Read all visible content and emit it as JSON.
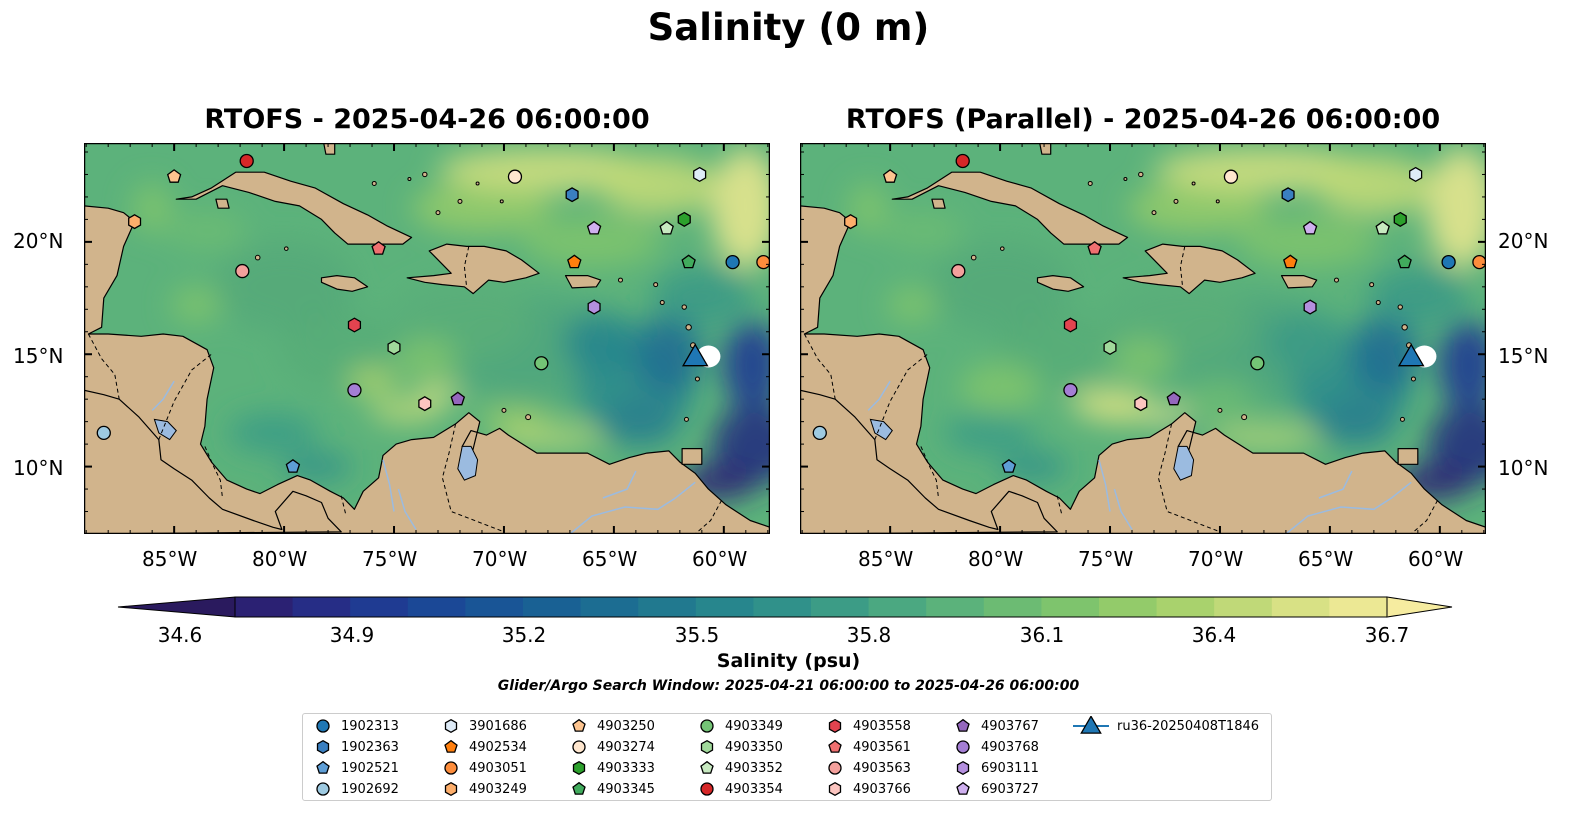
{
  "figure": {
    "suptitle": "Salinity (0 m)",
    "colorbar_label": "Salinity (psu)",
    "search_window": "Glider/Argo Search Window: 2025-04-21 06:00:00 to 2025-04-26 06:00:00"
  },
  "panels": [
    {
      "title": "RTOFS - 2025-04-26 06:00:00"
    },
    {
      "title": "RTOFS (Parallel) - 2025-04-26 06:00:00"
    }
  ],
  "axes": {
    "lon_ticks": [
      "85°W",
      "80°W",
      "75°W",
      "70°W",
      "65°W",
      "60°W"
    ],
    "lon_values": [
      -85,
      -80,
      -75,
      -70,
      -65,
      -60
    ],
    "lat_ticks": [
      "20°N",
      "15°N",
      "10°N"
    ],
    "lat_values": [
      20,
      15,
      10
    ],
    "lon_range": [
      -89.1,
      -57.9
    ],
    "lat_range": [
      7.0,
      24.4
    ]
  },
  "colorbar": {
    "min": 34.5,
    "max": 36.8,
    "ticks": [
      "34.6",
      "34.9",
      "35.2",
      "35.5",
      "35.8",
      "36.1",
      "36.4",
      "36.7"
    ],
    "tick_values": [
      34.6,
      34.9,
      35.2,
      35.5,
      35.8,
      36.1,
      36.4,
      36.7
    ],
    "colors": [
      "#2a1a5e",
      "#2b2173",
      "#262d86",
      "#1f3b92",
      "#1b4896",
      "#195596",
      "#196194",
      "#1c6d92",
      "#21798f",
      "#27868d",
      "#30918a",
      "#3c9c86",
      "#4ba881",
      "#5bb27b",
      "#6cbb73",
      "#7ec46d",
      "#93cb6a",
      "#a9d26d",
      "#c0d978",
      "#d8e185",
      "#ece894",
      "#f6eca0"
    ]
  },
  "colors": {
    "land": "#d1b48c",
    "pacific": "#2a1a5e",
    "caribbean": "#5cb27b",
    "north_sea": "#f2e98f",
    "east_sea": "#2a3b8a",
    "lake": "#9bbbe0",
    "river": "#9bbbe0"
  },
  "legend": [
    {
      "label": "1902313",
      "shape": "circle",
      "color": "#1f77b4"
    },
    {
      "label": "1902363",
      "shape": "hexagon",
      "color": "#3a7fc0"
    },
    {
      "label": "1902521",
      "shape": "pentagon",
      "color": "#5e9ed6"
    },
    {
      "label": "1902692",
      "shape": "circle",
      "color": "#9ecae1"
    },
    {
      "label": "3901686",
      "shape": "hexagon",
      "color": "#deebf7"
    },
    {
      "label": "4902534",
      "shape": "pentagon",
      "color": "#ff7f0e"
    },
    {
      "label": "4903051",
      "shape": "circle",
      "color": "#fd8d3c"
    },
    {
      "label": "4903249",
      "shape": "hexagon",
      "color": "#fdae6b"
    },
    {
      "label": "4903250",
      "shape": "pentagon",
      "color": "#fdc48f"
    },
    {
      "label": "4903274",
      "shape": "circle",
      "color": "#fee6ce"
    },
    {
      "label": "4903333",
      "shape": "hexagon",
      "color": "#2ca02c"
    },
    {
      "label": "4903345",
      "shape": "pentagon",
      "color": "#41ab5d"
    },
    {
      "label": "4903349",
      "shape": "circle",
      "color": "#74c476"
    },
    {
      "label": "4903350",
      "shape": "hexagon",
      "color": "#a1d99b"
    },
    {
      "label": "4903352",
      "shape": "pentagon",
      "color": "#c7e9c0"
    },
    {
      "label": "4903354",
      "shape": "circle",
      "color": "#d62728"
    },
    {
      "label": "4903558",
      "shape": "hexagon",
      "color": "#e3434f"
    },
    {
      "label": "4903561",
      "shape": "pentagon",
      "color": "#ef7070"
    },
    {
      "label": "4903563",
      "shape": "circle",
      "color": "#f4a09c"
    },
    {
      "label": "4903766",
      "shape": "hexagon",
      "color": "#fcc5c0"
    },
    {
      "label": "4903767",
      "shape": "pentagon",
      "color": "#9467bd"
    },
    {
      "label": "4903768",
      "shape": "circle",
      "color": "#a47ed4"
    },
    {
      "label": "6903111",
      "shape": "hexagon",
      "color": "#b48fde"
    },
    {
      "label": "6903727",
      "shape": "pentagon",
      "color": "#cfb0ef"
    },
    {
      "label": "ru36-20250408T1846",
      "shape": "triangle",
      "color": "#1f77b4"
    }
  ],
  "markers": [
    {
      "id": "4903354",
      "lon": -81.7,
      "lat": 23.6
    },
    {
      "id": "4903250",
      "lon": -85.0,
      "lat": 22.9
    },
    {
      "id": "4903249",
      "lon": -86.8,
      "lat": 20.9
    },
    {
      "id": "4903274",
      "lon": -69.5,
      "lat": 22.9
    },
    {
      "id": "1902363",
      "lon": -66.9,
      "lat": 22.1
    },
    {
      "id": "3901686",
      "lon": -61.1,
      "lat": 23.0
    },
    {
      "id": "6903727",
      "lon": -65.9,
      "lat": 20.6
    },
    {
      "id": "4903352",
      "lon": -62.6,
      "lat": 20.6
    },
    {
      "id": "4903333",
      "lon": -61.8,
      "lat": 21.0
    },
    {
      "id": "4903561",
      "lon": -75.7,
      "lat": 19.7
    },
    {
      "id": "4903563",
      "lon": -81.9,
      "lat": 18.7
    },
    {
      "id": "4902534",
      "lon": -66.8,
      "lat": 19.1
    },
    {
      "id": "4903345",
      "lon": -61.6,
      "lat": 19.1
    },
    {
      "id": "1902313",
      "lon": -59.6,
      "lat": 19.1
    },
    {
      "id": "4903051",
      "lon": -58.2,
      "lat": 19.1
    },
    {
      "id": "6903111",
      "lon": -65.9,
      "lat": 17.1
    },
    {
      "id": "4903558",
      "lon": -76.8,
      "lat": 16.3
    },
    {
      "id": "4903350",
      "lon": -75.0,
      "lat": 15.3
    },
    {
      "id": "4903349",
      "lon": -68.3,
      "lat": 14.6
    },
    {
      "id": "4903768",
      "lon": -76.8,
      "lat": 13.4
    },
    {
      "id": "4903766",
      "lon": -73.6,
      "lat": 12.8
    },
    {
      "id": "4903767",
      "lon": -72.1,
      "lat": 13.0
    },
    {
      "id": "1902692",
      "lon": -88.2,
      "lat": 11.5
    },
    {
      "id": "1902521",
      "lon": -79.6,
      "lat": 10.0
    }
  ],
  "glider": {
    "id": "ru36-20250408T1846",
    "lon": -61.3,
    "lat": 14.8
  }
}
